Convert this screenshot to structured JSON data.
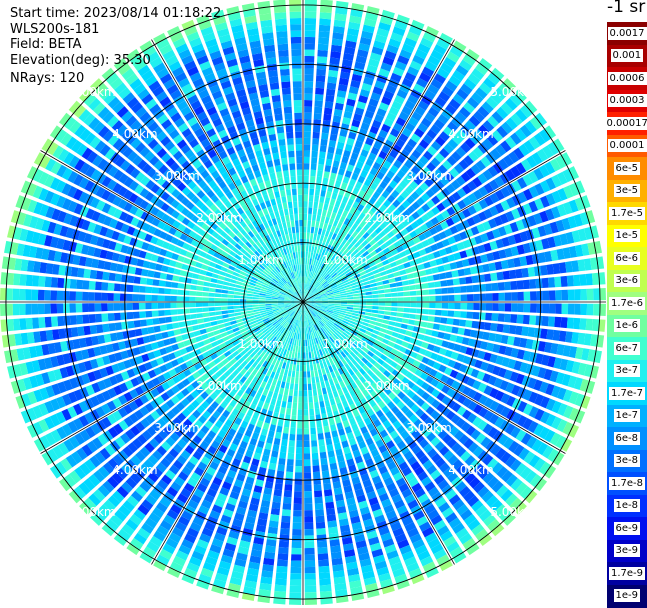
{
  "header": {
    "start_time": "Start time: 2023/08/14 01:18:22",
    "instrument": "WLS200s-181",
    "field": "Field: BETA",
    "elevation": "Elevation(deg): 35.30",
    "nrays": "NRays: 120"
  },
  "colorbar": {
    "title": "-1 sr",
    "labels": [
      "0.0017",
      "0.001",
      "0.0006",
      "0.0003",
      "0.00017",
      "0.0001",
      "6e-5",
      "3e-5",
      "1.7e-5",
      "1e-5",
      "6e-6",
      "3e-6",
      "1.7e-6",
      "1e-6",
      "6e-7",
      "3e-7",
      "1.7e-7",
      "1e-7",
      "6e-8",
      "3e-8",
      "1.7e-8",
      "1e-8",
      "6e-9",
      "3e-9",
      "1.7e-9",
      "1e-9"
    ],
    "colors": [
      "#8b0000",
      "#a80000",
      "#c80000",
      "#e00000",
      "#ff2000",
      "#ff5a00",
      "#ff8c00",
      "#ffb000",
      "#ffd800",
      "#ffff00",
      "#e8ff20",
      "#c0ff50",
      "#a0ff80",
      "#70ffa0",
      "#40ffd0",
      "#20f0f0",
      "#00d8ff",
      "#00b0ff",
      "#0090ff",
      "#0070ff",
      "#0050ff",
      "#0030ff",
      "#0010f0",
      "#0000c8",
      "#0000a0",
      "#000070"
    ]
  },
  "chart_data": {
    "type": "heatmap",
    "projection": "polar (PPI)",
    "field": "BETA",
    "nrays": 120,
    "elevation_deg": 35.3,
    "range_rings_km": [
      1,
      2,
      3,
      4,
      5
    ],
    "range_ring_labels": [
      "1.00km",
      "2.00km",
      "3.00km",
      "4.00km",
      "5.00km"
    ],
    "max_range_km": 5.1,
    "radial_spokes_deg": [
      0,
      30,
      60,
      90,
      120,
      150,
      180,
      210,
      240,
      270,
      300,
      330
    ],
    "value_pattern": "near range (< ~2.3 km) dominated by ~6e-7 to 1e-6 (cyan); 2.5-4.5 km mostly 1e-7 to 3e-8 (blue) with 3e-7 speckles; outer edge > 4.5 km rising to ~1.7e-6 to 6e-6 (green-yellow), strongest toward north-west and south-east"
  }
}
